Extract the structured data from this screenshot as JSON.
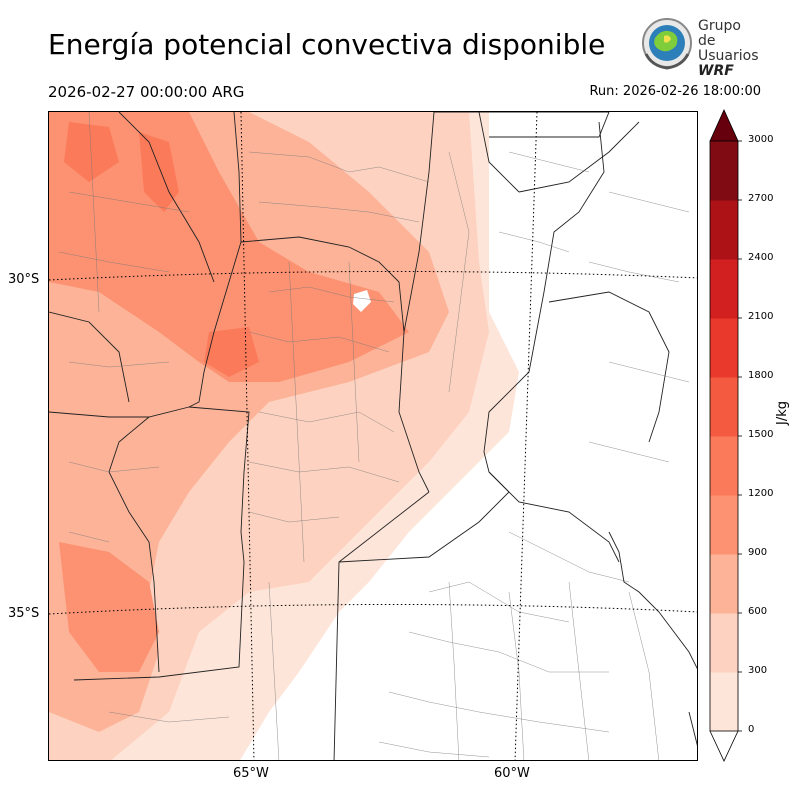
{
  "header": {
    "title": "Energía potencial convectiva disponible",
    "valid_time": "2026-02-27 00:00:00 ARG",
    "run_time": "Run: 2026-02-26 18:00:00"
  },
  "logo": {
    "line1": "Grupo de",
    "line2": "Usuarios",
    "line3": "WRF"
  },
  "map": {
    "variable": "CAPE",
    "region": "central Argentina",
    "latitudes": [
      {
        "value": -30,
        "label": "30°S"
      },
      {
        "value": -35,
        "label": "35°S"
      }
    ],
    "longitudes": [
      {
        "value": -65,
        "label": "65°W"
      },
      {
        "value": -60,
        "label": "60°W"
      }
    ]
  },
  "colorbar": {
    "units": "J/kg",
    "levels": [
      0,
      300,
      600,
      900,
      1200,
      1500,
      1800,
      2100,
      2400,
      2700,
      3000
    ],
    "tick_labels": [
      "0",
      "300",
      "600",
      "900",
      "1200",
      "1500",
      "1800",
      "2100",
      "2400",
      "2700",
      "3000"
    ],
    "colors": [
      "#fee5d9",
      "#fdd2c0",
      "#fcb398",
      "#fc9272",
      "#fb7a5a",
      "#f45a40",
      "#e8392c",
      "#d21f20",
      "#ad1217",
      "#800b13"
    ],
    "extend": "both"
  }
}
